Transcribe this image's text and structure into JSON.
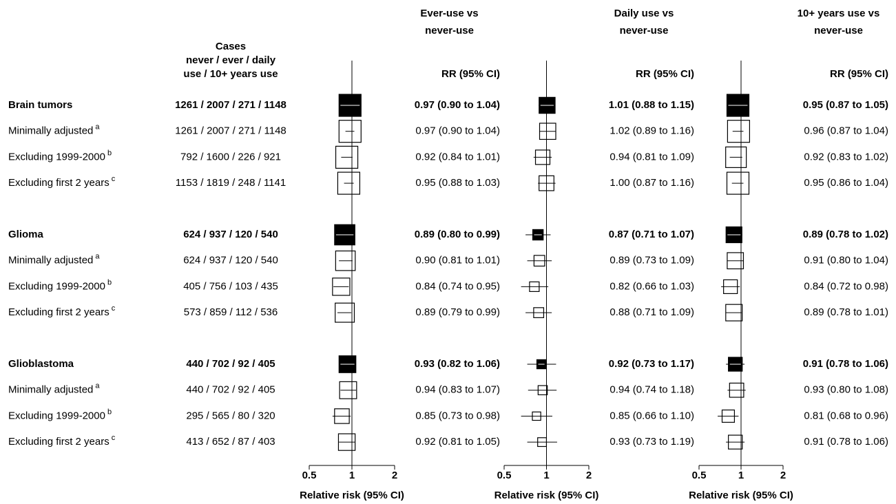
{
  "chart_data": {
    "type": "forest",
    "cases_header": [
      "Cases",
      "never / ever / daily",
      "use / 10+ years use"
    ],
    "rows": [
      {
        "label": "Brain tumors",
        "bold": true,
        "cases": "1261 / 2007 / 271 / 1148"
      },
      {
        "label": "Minimally adjusted",
        "note": "a",
        "cases": "1261 / 2007 / 271 / 1148"
      },
      {
        "label": "Excluding 1999-2000",
        "note": "b",
        "cases": "792 / 1600 / 226 / 921"
      },
      {
        "label": "Excluding first 2 years",
        "note": "c",
        "cases": "1153 / 1819 / 248 / 1141"
      },
      {
        "label": "Glioma",
        "bold": true,
        "cases": "624 / 937 / 120 / 540"
      },
      {
        "label": "Minimally adjusted",
        "note": "a",
        "cases": "624 / 937 / 120 / 540"
      },
      {
        "label": "Excluding 1999-2000",
        "note": "b",
        "cases": "405 / 756 / 103 / 435"
      },
      {
        "label": "Excluding first 2 years",
        "note": "c",
        "cases": "573 / 859 / 112 / 536"
      },
      {
        "label": "Glioblastoma",
        "bold": true,
        "cases": "440 / 702 / 92 / 405"
      },
      {
        "label": "Minimally adjusted",
        "note": "a",
        "cases": "440 / 702 / 92 / 405"
      },
      {
        "label": "Excluding 1999-2000",
        "note": "b",
        "cases": "295 / 565 / 80 / 320"
      },
      {
        "label": "Excluding first 2 years",
        "note": "c",
        "cases": "413 / 652 / 87 / 403"
      }
    ],
    "panels": [
      {
        "title": [
          "Ever-use vs",
          "never-use"
        ],
        "column_header": "RR (95% CI)",
        "xlabel": "Relative risk (95% CI)",
        "xscale": "log",
        "xlim": [
          0.5,
          2
        ],
        "xticks": [
          0.5,
          1,
          2
        ],
        "color": "#000000",
        "values": [
          0.97,
          0.97,
          0.92,
          0.95,
          0.89,
          0.9,
          0.84,
          0.89,
          0.93,
          0.94,
          0.85,
          0.92
        ],
        "lower": [
          0.9,
          0.9,
          0.84,
          0.88,
          0.8,
          0.81,
          0.74,
          0.79,
          0.82,
          0.83,
          0.73,
          0.81
        ],
        "upper": [
          1.04,
          1.04,
          1.01,
          1.03,
          0.99,
          1.01,
          0.95,
          0.99,
          1.06,
          1.07,
          0.98,
          1.05
        ],
        "value_labels": [
          "0.97 (0.90 to 1.04)",
          "0.97 (0.90 to 1.04)",
          "0.92 (0.84 to 1.01)",
          "0.95 (0.88 to 1.03)",
          "0.89 (0.80 to 0.99)",
          "0.90 (0.81 to 1.01)",
          "0.84 (0.74 to 0.95)",
          "0.89 (0.79 to 0.99)",
          "0.93 (0.82 to 1.06)",
          "0.94 (0.83 to 1.07)",
          "0.85 (0.73 to 0.98)",
          "0.92 (0.81 to 1.05)"
        ]
      },
      {
        "title": [
          "Daily use vs",
          "never-use"
        ],
        "column_header": "RR (95% CI)",
        "xlabel": "Relative risk (95% CI)",
        "xscale": "log",
        "xlim": [
          0.5,
          2
        ],
        "xticks": [
          0.5,
          1,
          2
        ],
        "color": "#000000",
        "values": [
          1.01,
          1.02,
          0.94,
          1.0,
          0.87,
          0.89,
          0.82,
          0.88,
          0.92,
          0.94,
          0.85,
          0.93
        ],
        "lower": [
          0.88,
          0.89,
          0.81,
          0.87,
          0.71,
          0.73,
          0.66,
          0.71,
          0.73,
          0.74,
          0.66,
          0.73
        ],
        "upper": [
          1.15,
          1.16,
          1.09,
          1.16,
          1.07,
          1.09,
          1.03,
          1.09,
          1.17,
          1.18,
          1.1,
          1.19
        ],
        "value_labels": [
          "1.01 (0.88 to 1.15)",
          "1.02 (0.89 to 1.16)",
          "0.94 (0.81 to 1.09)",
          "1.00 (0.87 to 1.16)",
          "0.87 (0.71 to 1.07)",
          "0.89 (0.73 to 1.09)",
          "0.82 (0.66 to 1.03)",
          "0.88 (0.71 to 1.09)",
          "0.92 (0.73 to 1.17)",
          "0.94 (0.74 to 1.18)",
          "0.85 (0.66 to 1.10)",
          "0.93 (0.73 to 1.19)"
        ]
      },
      {
        "title": [
          "10+ years use vs",
          "never-use"
        ],
        "column_header": "RR (95% CI)",
        "xlabel": "Relative risk (95% CI)",
        "xscale": "log",
        "xlim": [
          0.5,
          2
        ],
        "xticks": [
          0.5,
          1,
          2
        ],
        "color": "#000000",
        "values": [
          0.95,
          0.96,
          0.92,
          0.95,
          0.89,
          0.91,
          0.84,
          0.89,
          0.91,
          0.93,
          0.81,
          0.91
        ],
        "lower": [
          0.87,
          0.87,
          0.83,
          0.86,
          0.78,
          0.8,
          0.72,
          0.78,
          0.78,
          0.8,
          0.68,
          0.78
        ],
        "upper": [
          1.05,
          1.04,
          1.02,
          1.04,
          1.02,
          1.04,
          0.98,
          1.01,
          1.06,
          1.08,
          0.96,
          1.06
        ],
        "value_labels": [
          "0.95 (0.87 to 1.05)",
          "0.96 (0.87 to 1.04)",
          "0.92 (0.83 to 1.02)",
          "0.95 (0.86 to 1.04)",
          "0.89 (0.78 to 1.02)",
          "0.91 (0.80 to 1.04)",
          "0.84 (0.72 to 0.98)",
          "0.89 (0.78 to 1.01)",
          "0.91 (0.78 to 1.06)",
          "0.93 (0.80 to 1.08)",
          "0.81 (0.68 to 0.96)",
          "0.91 (0.78 to 1.06)"
        ]
      }
    ]
  }
}
